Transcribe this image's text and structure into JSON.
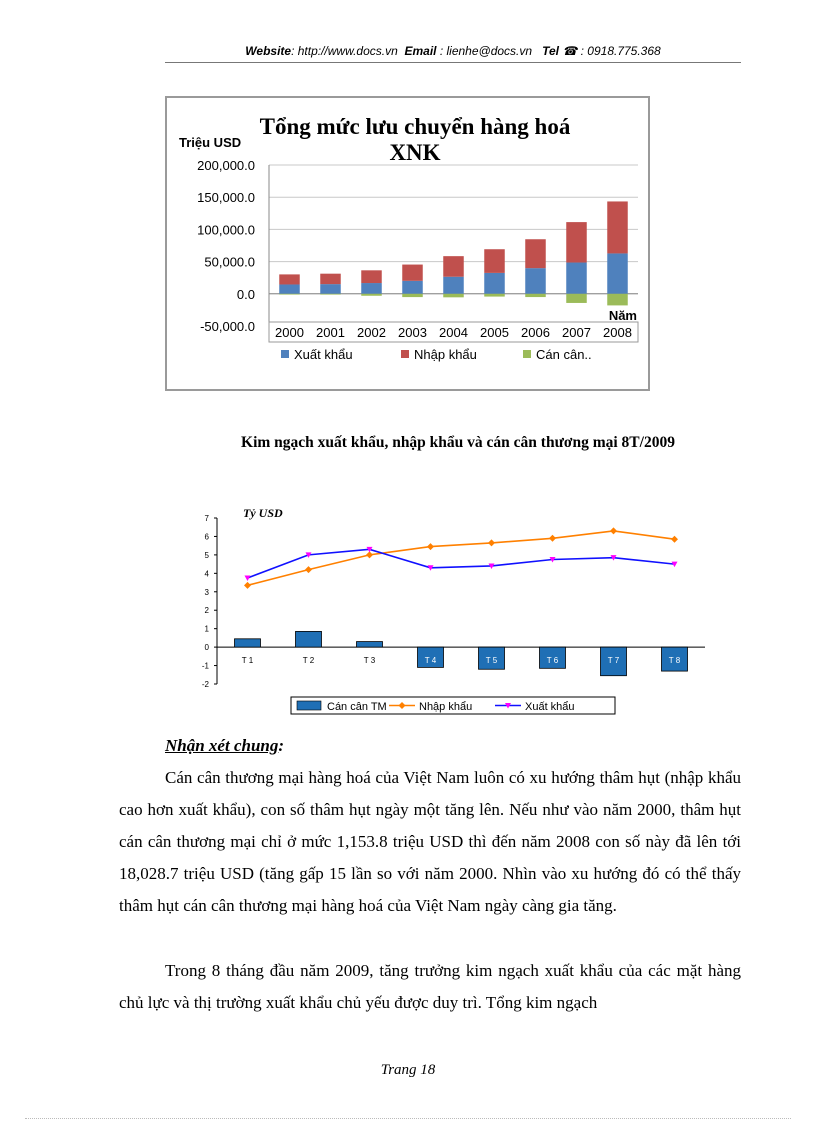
{
  "header": {
    "website_label": "Website",
    "website_value": ": http://www.docs.vn",
    "email_label": "Email",
    "email_value": ": lienhe@docs.vn",
    "tel_label": "Tel",
    "tel_icon": "phone-icon",
    "tel_value": ": 0918.775.368"
  },
  "chart_data": [
    {
      "type": "bar",
      "stacked": true,
      "title": "Tổng mức lưu chuyển hàng hoá XNK",
      "title_line1": "Tổng mức lưu chuyển hàng hoá",
      "title_line2": "XNK",
      "ylabel": "Triệu USD",
      "xlabel": "Năm",
      "ylim": [
        -50000,
        200000
      ],
      "yticks": [
        "200,000.0",
        "150,000.0",
        "100,000.0",
        "50,000.0",
        "0.0",
        "-50,000.0"
      ],
      "grid": true,
      "legend": "bottom",
      "categories": [
        "2000",
        "2001",
        "2002",
        "2003",
        "2004",
        "2005",
        "2006",
        "2007",
        "2008"
      ],
      "series": [
        {
          "name": "Xuất khẩu",
          "color": "#4f81bd",
          "values": [
            14483,
            15029,
            16706,
            20149,
            26485,
            32447,
            39826,
            48561,
            62685
          ]
        },
        {
          "name": "Nhập khẩu",
          "color": "#c0504d",
          "values": [
            15637,
            16218,
            19746,
            25256,
            31969,
            36761,
            44891,
            62765,
            80714
          ]
        },
        {
          "name": "Cán cân..",
          "color": "#9bbb59",
          "values": [
            -1154,
            -1189,
            -3040,
            -5107,
            -5484,
            -4314,
            -5065,
            -14203,
            -18029
          ]
        }
      ]
    },
    {
      "type": "line",
      "ylabel": "Tỷ USD",
      "ylim": [
        -2,
        7
      ],
      "yticks": [
        "7",
        "6",
        "5",
        "4",
        "3",
        "2",
        "1",
        "0",
        "-1",
        "-2"
      ],
      "categories": [
        "T 1",
        "T 2",
        "T 3",
        "T 4",
        "T 5",
        "T 6",
        "T 7",
        "T 8"
      ],
      "legend": "bottom",
      "series": [
        {
          "name": "Cán cân TM",
          "kind": "bar",
          "color": "#1f6fb5",
          "values": [
            0.45,
            0.85,
            0.3,
            -1.1,
            -1.2,
            -1.15,
            -1.55,
            -1.3
          ]
        },
        {
          "name": "Nhập khẩu",
          "kind": "line",
          "color": "#ff8000",
          "values": [
            3.35,
            4.2,
            5.0,
            5.45,
            5.65,
            5.9,
            6.3,
            5.85
          ]
        },
        {
          "name": "Xuất khẩu",
          "kind": "line",
          "color": "#1010ff",
          "values": [
            3.75,
            5.0,
            5.3,
            4.3,
            4.4,
            4.75,
            4.85,
            4.5
          ]
        }
      ]
    }
  ],
  "caption2": "Kim ngạch xuất khẩu, nhập khẩu và cán cân thương mại 8T/2009",
  "section_title": "Nhận xét chung",
  "section_title_colon": ":",
  "paragraphs": [
    "Cán cân thương mại hàng hoá của Việt Nam luôn có xu hướng thâm hụt (nhập khẩu cao hơn xuất khẩu), con số thâm hụt ngày một tăng lên. Nếu như vào năm 2000, thâm hụt cán cân thương mại chỉ ở mức 1,153.8 triệu USD thì đến năm 2008 con số này đã lên tới 18,028.7 triệu USD (tăng gấp 15 lần so với năm 2000. Nhìn vào xu hướng đó có thể thấy thâm hụt cán cân thương mại hàng hoá của Việt Nam ngày càng gia tăng.",
    "Trong 8 tháng đầu năm 2009, tăng trưởng kim ngạch xuất khẩu của các mặt hàng chủ lực và thị trường xuất khẩu chủ yếu được duy trì. Tổng kim ngạch"
  ],
  "footer": "Trang 18"
}
